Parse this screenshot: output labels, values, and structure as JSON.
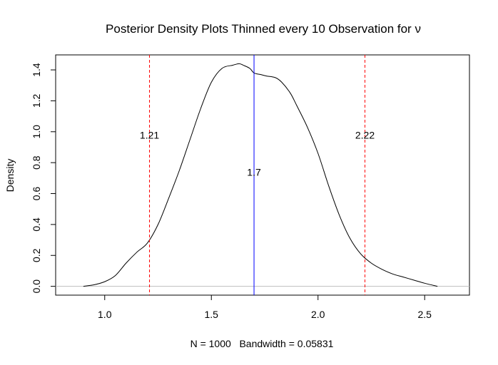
{
  "chart_data": {
    "type": "line",
    "title": "Posterior Density Plots Thinned every 10 Observation for ν",
    "xlabel": "N = 1000   Bandwidth = 0.05831",
    "ylabel": "Density",
    "xlim": [
      0.77,
      2.71
    ],
    "ylim": [
      -0.057,
      1.497
    ],
    "x_ticks": [
      "1.0",
      "1.5",
      "2.0",
      "2.5"
    ],
    "y_ticks": [
      "0.0",
      "0.2",
      "0.4",
      "0.6",
      "0.8",
      "1.0",
      "1.2",
      "1.4"
    ],
    "grid": false,
    "series": [
      {
        "color": "#000000",
        "x": [
          0.9,
          0.95,
          1.0,
          1.05,
          1.1,
          1.15,
          1.2,
          1.25,
          1.3,
          1.35,
          1.4,
          1.45,
          1.5,
          1.55,
          1.6,
          1.63,
          1.65,
          1.68,
          1.7,
          1.73,
          1.76,
          1.8,
          1.83,
          1.87,
          1.9,
          1.95,
          2.0,
          2.05,
          2.1,
          2.15,
          2.2,
          2.25,
          2.3,
          2.35,
          2.4,
          2.45,
          2.5,
          2.56
        ],
        "y": [
          0.0,
          0.01,
          0.03,
          0.07,
          0.15,
          0.22,
          0.28,
          0.4,
          0.57,
          0.75,
          0.95,
          1.15,
          1.32,
          1.41,
          1.43,
          1.44,
          1.43,
          1.41,
          1.38,
          1.37,
          1.36,
          1.35,
          1.32,
          1.25,
          1.17,
          1.03,
          0.86,
          0.65,
          0.46,
          0.31,
          0.21,
          0.15,
          0.11,
          0.08,
          0.06,
          0.04,
          0.02,
          0.0
        ]
      }
    ],
    "baseline": {
      "y": 0,
      "color": "#bebebe"
    },
    "vlines": [
      {
        "x": 1.21,
        "label": "1.21",
        "label_y": 0.955,
        "color": "#ff0000",
        "dashed": true
      },
      {
        "x": 1.7,
        "label": "1.7",
        "label_y": 0.715,
        "color": "#0000ff",
        "dashed": false
      },
      {
        "x": 2.22,
        "label": "2.22",
        "label_y": 0.955,
        "color": "#ff0000",
        "dashed": true
      }
    ]
  }
}
